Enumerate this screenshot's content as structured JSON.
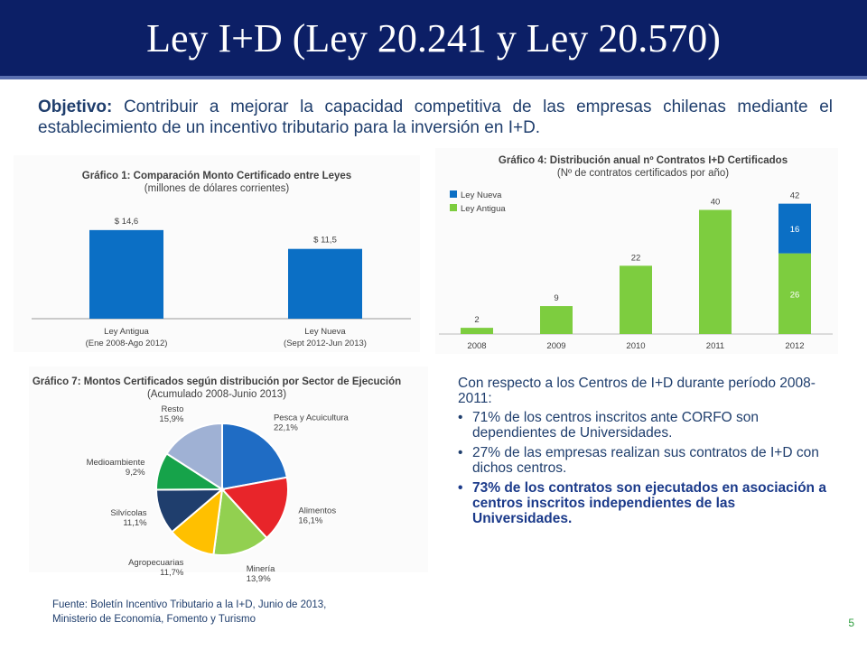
{
  "slide": {
    "title": "Ley I+D (Ley 20.241 y Ley 20.570)",
    "objective_label": "Objetivo:",
    "objective_text": " Contribuir a mejorar la capacidad competitiva de las empresas chilenas mediante el establecimiento de un incentivo tributario para la inversión en I+D.",
    "right_intro": "Con respecto a los Centros de I+D durante período 2008-2011:",
    "bullets": [
      {
        "text": "71% de los centros inscritos ante CORFO son dependientes de Universidades."
      },
      {
        "text": "27% de las empresas realizan sus contratos de I+D con dichos centros."
      },
      {
        "text": "73% de los contratos son ejecutados en asociación a centros inscritos independientes de las Universidades."
      }
    ],
    "source_line1": "Fuente: Boletín Incentivo Tributario a la I+D, Junio de 2013,",
    "source_line2": "Ministerio de Economía, Fomento y Turismo",
    "page_number": "5"
  },
  "colors": {
    "title_bar": "#0c1f66",
    "blue": "#0b6fc5",
    "green": "#7dcd3f",
    "text": "#1f3e6d"
  },
  "chart_data": [
    {
      "type": "bar",
      "title": "Gráfico 1: Comparación Monto Certificado entre Leyes",
      "subtitle": "(millones de dólares corrientes)",
      "categories": [
        {
          "name": "Ley Antigua",
          "sub": "(Ene 2008-Ago 2012)"
        },
        {
          "name": "Ley Nueva",
          "sub": "(Sept 2012-Jun 2013)"
        }
      ],
      "values": [
        14.6,
        11.5
      ],
      "value_labels": [
        "$ 14,6",
        "$ 11,5"
      ],
      "ylim": [
        0,
        18
      ]
    },
    {
      "type": "bar",
      "title": "Gráfico 4: Distribución anual nº Contratos I+D Certificados",
      "subtitle": "(Nº de contratos certificados por año)",
      "categories": [
        "2008",
        "2009",
        "2010",
        "2011",
        "2012"
      ],
      "series": [
        {
          "name": "Ley Antigua",
          "values": [
            2,
            9,
            22,
            40,
            26
          ]
        },
        {
          "name": "Ley Nueva",
          "values": [
            0,
            0,
            0,
            0,
            16
          ]
        }
      ],
      "totals": [
        2,
        9,
        22,
        40,
        42
      ],
      "segment_labels": {
        "Ley Antigua": [
          "",
          "",
          "",
          "",
          "26"
        ],
        "Ley Nueva": [
          "",
          "",
          "",
          "",
          "16"
        ]
      },
      "stacked": true,
      "legend_position": "top-left",
      "ylim": [
        0,
        48
      ]
    },
    {
      "type": "pie",
      "title": "Gráfico 7: Montos Certificados según distribución por Sector de Ejecución",
      "subtitle": "(Acumulado 2008-Junio 2013)",
      "slices": [
        {
          "name": "Pesca y Acuicultura",
          "value": 22.1,
          "label": "22,1%",
          "color": "#1f6cc4"
        },
        {
          "name": "Alimentos",
          "value": 16.1,
          "label": "16,1%",
          "color": "#e8252a"
        },
        {
          "name": "Minería",
          "value": 13.9,
          "label": "13,9%",
          "color": "#92d050"
        },
        {
          "name": "Agropecuarias",
          "value": 11.7,
          "label": "11,7%",
          "color": "#ffc000"
        },
        {
          "name": "Silvícolas",
          "value": 11.1,
          "label": "11,1%",
          "color": "#1f3e6d"
        },
        {
          "name": "Medioambiente",
          "value": 9.2,
          "label": "9,2%",
          "color": "#16a34a"
        },
        {
          "name": "Resto",
          "value": 15.9,
          "label": "15,9%",
          "color": "#9fb1d4"
        }
      ]
    }
  ]
}
